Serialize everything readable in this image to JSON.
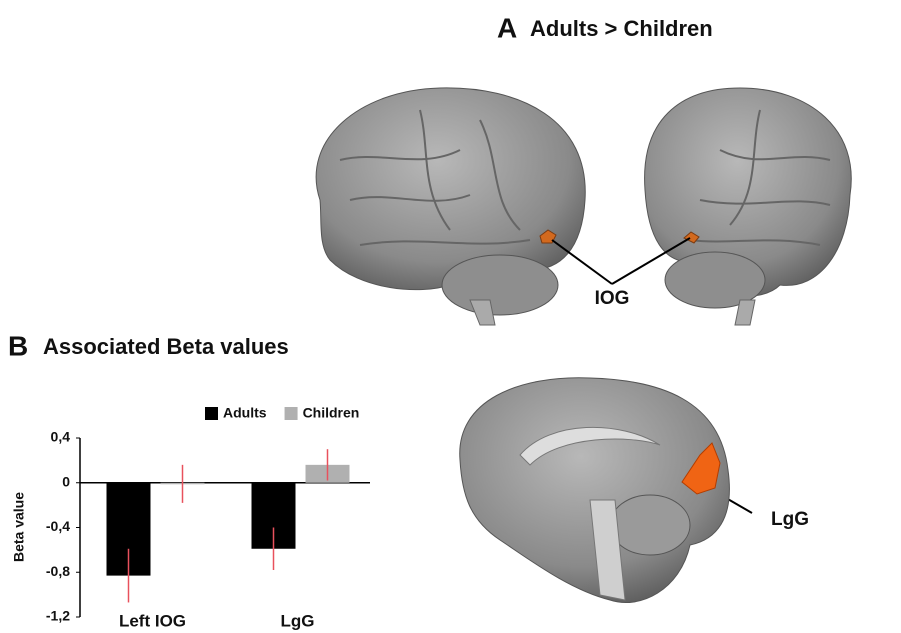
{
  "figure": {
    "panel_label": "A",
    "title": "Adults > Children",
    "annotations": [
      "IOG",
      "LgG"
    ]
  },
  "chart_data": {
    "type": "bar",
    "panel_label": "B",
    "title": "Associated Beta values",
    "y_label": "Beta value",
    "categories": [
      "Left IOG",
      "LgG"
    ],
    "series": [
      {
        "name": "Adults",
        "color": "#000000",
        "values": [
          -0.83,
          -0.59
        ],
        "errors": [
          0.24,
          0.19
        ]
      },
      {
        "name": "Children",
        "color": "#b0b0b0",
        "values": [
          -0.01,
          0.16
        ],
        "errors": [
          0.17,
          0.14
        ]
      }
    ],
    "error_color": "#e8515d",
    "ylim": [
      -1.2,
      0.4
    ],
    "yticks": [
      {
        "value": 0.4,
        "label": "0,4"
      },
      0,
      {
        "value": -0.4,
        "label": "-0,4"
      },
      {
        "value": -0.8,
        "label": "-0,8"
      },
      {
        "value": -1.2,
        "label": "-1,2"
      }
    ],
    "legend": "top-right"
  }
}
